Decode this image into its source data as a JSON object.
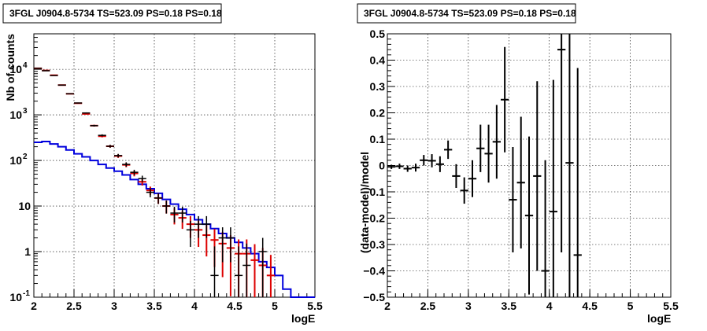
{
  "chart_data": [
    {
      "type": "histogram",
      "title": "3FGL J0904.8-5734 TS=523.09 PS=0.18 PS=0.18",
      "xlabel": "logE",
      "ylabel": "Nb of counts",
      "xlim": [
        2,
        5.5
      ],
      "ylim": [
        0.1,
        60000
      ],
      "yscale": "log",
      "grid": true,
      "x_ticks": [
        "2",
        "2.5",
        "3",
        "3.5",
        "4",
        "4.5",
        "5",
        "5.5"
      ],
      "y_ticks": [
        {
          "value": 0.1,
          "base": "10",
          "exp": "-1"
        },
        {
          "value": 1,
          "text": "1"
        },
        {
          "value": 10,
          "text": "10"
        },
        {
          "value": 100,
          "base": "10",
          "exp": "2"
        },
        {
          "value": 1000,
          "base": "10",
          "exp": "3"
        },
        {
          "value": 10000,
          "base": "10",
          "exp": "4"
        }
      ],
      "colors": {
        "data": "#000000",
        "model": "#dd0000",
        "component": "#0000dd"
      },
      "bins": {
        "start": 2.0,
        "width": 0.1,
        "data": [
          10500,
          9300,
          7300,
          4500,
          2900,
          1820,
          1100,
          580,
          355,
          205,
          128,
          82,
          55,
          40,
          20,
          15,
          10,
          7,
          7,
          3,
          4,
          4,
          0.3,
          2,
          2,
          0.3,
          0.5,
          0,
          1,
          0,
          0,
          0,
          0,
          0,
          0
        ],
        "model": [
          10500,
          9400,
          7400,
          4500,
          2900,
          1800,
          1050,
          580,
          340,
          205,
          125,
          80,
          52,
          34,
          22,
          15,
          10,
          6.5,
          5.5,
          4,
          3,
          2.3,
          1.8,
          1.5,
          1.2,
          0.9,
          0.9,
          0.65,
          0.5,
          0.3,
          0,
          0,
          0,
          0,
          0
        ],
        "component": [
          250,
          260,
          230,
          200,
          170,
          140,
          120,
          100,
          82,
          68,
          58,
          48,
          38,
          30,
          24,
          19,
          14,
          11,
          8.5,
          6.5,
          5,
          4,
          3.2,
          2.5,
          2.0,
          1.6,
          1.2,
          0.9,
          0.6,
          0.45,
          0.3,
          0.15,
          0.1,
          0.1,
          0.1
        ]
      }
    },
    {
      "type": "scatter",
      "title": "3FGL J0904.8-5734 TS=523.09 PS=0.18 PS=0.18",
      "xlabel": "logE",
      "ylabel": "(data-model)/model",
      "xlim": [
        2,
        5.5
      ],
      "ylim": [
        -0.5,
        0.5
      ],
      "grid": true,
      "x_ticks": [
        "2",
        "2.5",
        "3",
        "3.5",
        "4",
        "4.5",
        "5",
        "5.5"
      ],
      "y_ticks": [
        "−0.5",
        "−0.4",
        "−0.3",
        "−0.2",
        "−0.1",
        "0",
        "0.1",
        "0.2",
        "0.3",
        "0.4",
        "0.5"
      ],
      "points": [
        {
          "x": 2.05,
          "y": -0.005,
          "err": 0.008
        },
        {
          "x": 2.15,
          "y": -0.003,
          "err": 0.01
        },
        {
          "x": 2.25,
          "y": -0.012,
          "err": 0.012
        },
        {
          "x": 2.35,
          "y": -0.008,
          "err": 0.015
        },
        {
          "x": 2.45,
          "y": 0.02,
          "err": 0.02
        },
        {
          "x": 2.55,
          "y": 0.018,
          "err": 0.025
        },
        {
          "x": 2.65,
          "y": 0.005,
          "err": 0.03
        },
        {
          "x": 2.75,
          "y": 0.06,
          "err": 0.035
        },
        {
          "x": 2.85,
          "y": -0.04,
          "err": 0.045
        },
        {
          "x": 2.95,
          "y": -0.095,
          "err": 0.05
        },
        {
          "x": 3.05,
          "y": -0.05,
          "err": 0.07
        },
        {
          "x": 3.15,
          "y": 0.065,
          "err": 0.09
        },
        {
          "x": 3.25,
          "y": 0.045,
          "err": 0.11
        },
        {
          "x": 3.35,
          "y": 0.09,
          "err": 0.14
        },
        {
          "x": 3.45,
          "y": 0.25,
          "err": 0.2
        },
        {
          "x": 3.55,
          "y": -0.13,
          "err": 0.2
        },
        {
          "x": 3.65,
          "y": -0.065,
          "err": 0.25
        },
        {
          "x": 3.75,
          "y": -0.19,
          "err": 0.3
        },
        {
          "x": 3.85,
          "y": -0.04,
          "err": 0.36
        },
        {
          "x": 3.95,
          "y": -0.4,
          "err": 0.42
        },
        {
          "x": 4.05,
          "y": -0.175,
          "err": 0.5
        },
        {
          "x": 4.15,
          "y": 0.44,
          "err": 0.77
        },
        {
          "x": 4.25,
          "y": 0.01,
          "err": 0.6
        },
        {
          "x": 4.35,
          "y": -0.34,
          "err": 0.71
        }
      ]
    }
  ]
}
